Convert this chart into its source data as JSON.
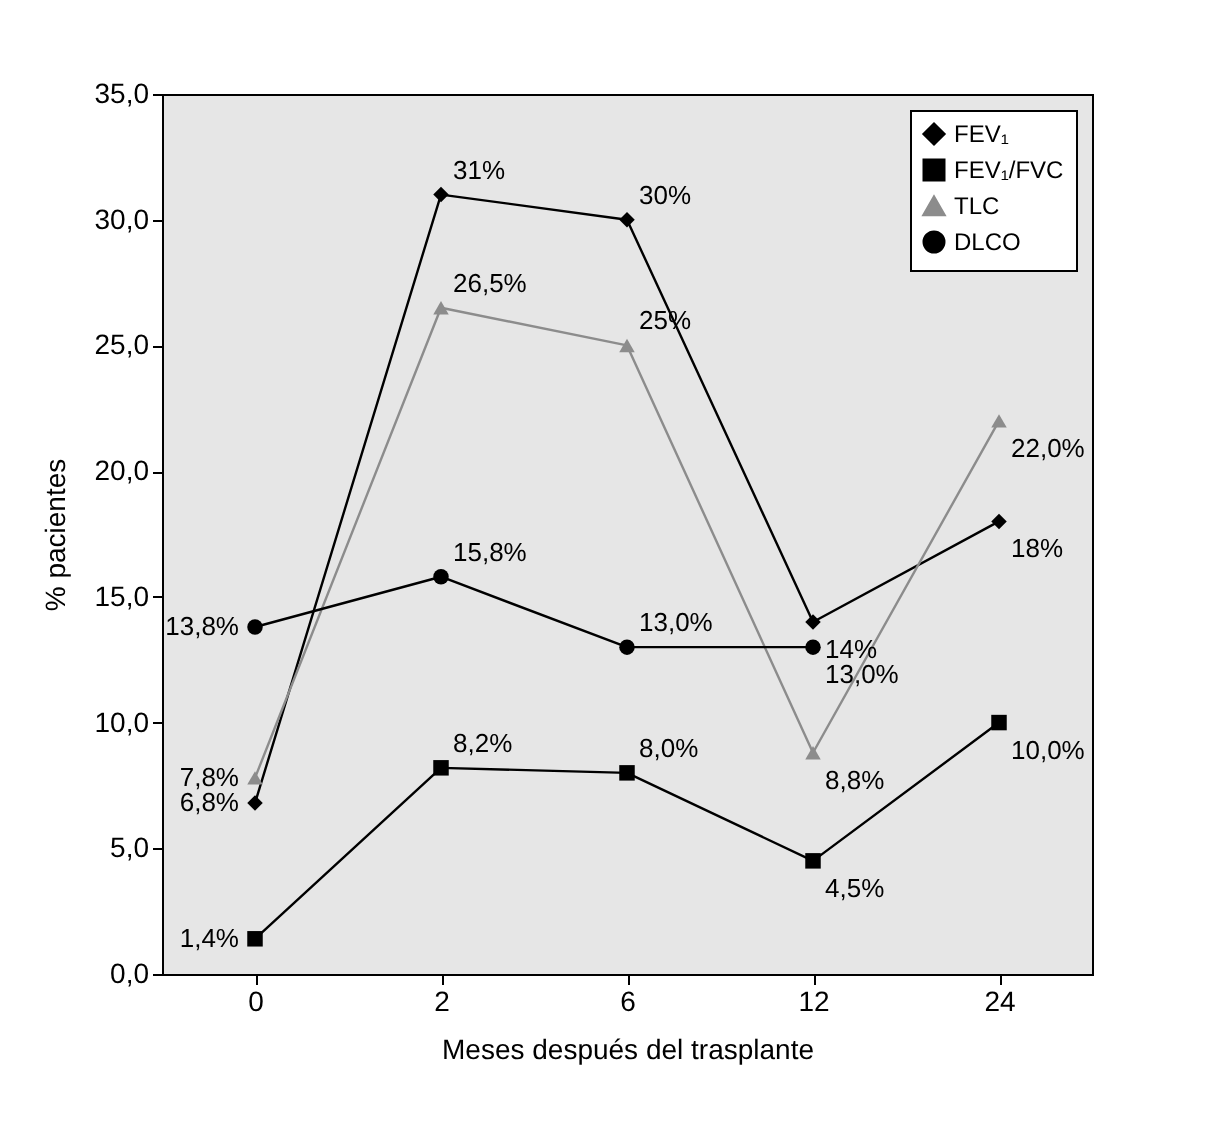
{
  "chart_data": {
    "type": "line",
    "xlabel": "Meses después del trasplante",
    "ylabel": "% pacientes",
    "categories": [
      "0",
      "2",
      "6",
      "12",
      "24"
    ],
    "ylim": [
      0,
      35
    ],
    "yticks": [
      {
        "value": 0,
        "label": "0,0"
      },
      {
        "value": 5,
        "label": "5,0"
      },
      {
        "value": 10,
        "label": "10,0"
      },
      {
        "value": 15,
        "label": "15,0"
      },
      {
        "value": 20,
        "label": "20,0"
      },
      {
        "value": 25,
        "label": "25,0"
      },
      {
        "value": 30,
        "label": "30,0"
      },
      {
        "value": 35,
        "label": "35,0"
      }
    ],
    "grid": false,
    "legend": "top right",
    "line_style": "solid",
    "series": [
      {
        "name": "FEV₁",
        "color": "#000000",
        "marker": "diamond",
        "values": [
          6.8,
          31,
          30,
          14,
          18
        ],
        "value_labels": [
          "6,8%",
          "31%",
          "30%",
          "14%",
          "18%"
        ]
      },
      {
        "name": "FEV₁/FVC",
        "color": "#000000",
        "marker": "square",
        "values": [
          1.4,
          8.2,
          8.0,
          4.5,
          10.0
        ],
        "value_labels": [
          "1,4%",
          "8,2%",
          "8,0%",
          "4,5%",
          "10,0%"
        ]
      },
      {
        "name": "TLC",
        "color": "#8c8c8c",
        "marker": "triangle",
        "values": [
          7.8,
          26.5,
          25,
          8.8,
          22.0
        ],
        "value_labels": [
          "7,8%",
          "26,5%",
          "25%",
          "8,8%",
          "22,0%"
        ]
      },
      {
        "name": "DLCO",
        "color": "#000000",
        "marker": "circle",
        "values": [
          13.8,
          15.8,
          13.0,
          13.0,
          null
        ],
        "value_labels": [
          "13,8%",
          "15,8%",
          "13,0%",
          "13,0%",
          null
        ]
      }
    ]
  }
}
